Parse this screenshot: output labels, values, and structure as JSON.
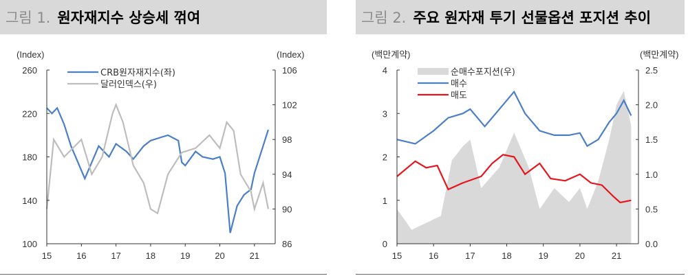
{
  "chart_data": [
    {
      "type": "line",
      "figure_label": "그림 1.",
      "title": "원자재지수 상승세 꺾여",
      "ylabel": "(Index)",
      "y2label": "(Index)",
      "ylim": [
        100,
        260
      ],
      "y2lim": [
        86,
        106
      ],
      "xlim": [
        2015,
        2021.6
      ],
      "yticks": [
        "100",
        "140",
        "180",
        "220",
        "260"
      ],
      "y2ticks": [
        "86",
        "90",
        "94",
        "98",
        "102",
        "106"
      ],
      "xticks": [
        "15",
        "16",
        "17",
        "18",
        "19",
        "20",
        "21"
      ],
      "legend_position": "top-left",
      "series": [
        {
          "name": "CRB원자재지수(좌)",
          "axis": "left",
          "color": "#4a7fc8",
          "x": [
            2015,
            2015.15,
            2015.3,
            2015.5,
            2015.7,
            2015.9,
            2016.1,
            2016.3,
            2016.5,
            2016.8,
            2017,
            2017.3,
            2017.5,
            2017.8,
            2018,
            2018.3,
            2018.5,
            2018.8,
            2018.9,
            2019,
            2019.3,
            2019.5,
            2019.8,
            2020,
            2020.15,
            2020.3,
            2020.5,
            2020.7,
            2020.9,
            2021,
            2021.2,
            2021.4
          ],
          "y": [
            225,
            220,
            225,
            210,
            190,
            175,
            160,
            175,
            190,
            180,
            192,
            185,
            178,
            190,
            195,
            198,
            200,
            195,
            175,
            172,
            185,
            180,
            178,
            180,
            165,
            110,
            135,
            145,
            150,
            165,
            185,
            205
          ]
        },
        {
          "name": "달러인덱스(우)",
          "axis": "right",
          "color": "#bdbdbd",
          "x": [
            2015,
            2015.2,
            2015.5,
            2016,
            2016.3,
            2016.6,
            2016.9,
            2017,
            2017.2,
            2017.5,
            2017.8,
            2018,
            2018.2,
            2018.5,
            2018.9,
            2019.3,
            2019.7,
            2020,
            2020.2,
            2020.4,
            2020.6,
            2020.9,
            2021,
            2021.25,
            2021.4
          ],
          "y": [
            90,
            98,
            96,
            98,
            94,
            96,
            101,
            102,
            100,
            95,
            93,
            90,
            89.5,
            94,
            96.5,
            97,
            98.5,
            97,
            100,
            99,
            94,
            92,
            90,
            93,
            90
          ]
        }
      ]
    },
    {
      "type": "line+area",
      "figure_label": "그림 2.",
      "title": "주요 원자재 투기 선물옵션 포지션 추이",
      "ylabel": "(백만계약)",
      "y2label": "(백만계약)",
      "ylim": [
        0,
        4
      ],
      "y2lim": [
        0,
        2.5
      ],
      "xlim": [
        2015,
        2021.6
      ],
      "yticks": [
        "0",
        "1",
        "2",
        "3",
        "4"
      ],
      "y2ticks": [
        "0.0",
        "0.5",
        "1.0",
        "1.5",
        "2.0",
        "2.5"
      ],
      "xticks": [
        "15",
        "16",
        "17",
        "18",
        "19",
        "20",
        "21"
      ],
      "legend_position": "top-left",
      "series": [
        {
          "name": "순매수포지션(우)",
          "axis": "right",
          "kind": "area",
          "color": "#d9d9d9",
          "x": [
            2015,
            2015.4,
            2015.8,
            2016.2,
            2016.5,
            2016.8,
            2017,
            2017.3,
            2017.8,
            2018.2,
            2018.6,
            2018.9,
            2019.3,
            2019.7,
            2020,
            2020.2,
            2020.5,
            2020.8,
            2021,
            2021.2,
            2021.4
          ],
          "y": [
            0.5,
            0.2,
            0.3,
            0.4,
            1.2,
            1.4,
            1.5,
            0.8,
            1.1,
            1.6,
            1.1,
            0.5,
            0.8,
            0.6,
            0.8,
            0.5,
            0.9,
            1.5,
            2.0,
            2.2,
            1.7
          ]
        },
        {
          "name": "매수",
          "axis": "left",
          "kind": "line",
          "color": "#4a7fc8",
          "x": [
            2015,
            2015.5,
            2016,
            2016.4,
            2016.8,
            2017,
            2017.4,
            2017.8,
            2018.2,
            2018.5,
            2018.9,
            2019.3,
            2019.7,
            2020,
            2020.2,
            2020.5,
            2020.8,
            2021,
            2021.2,
            2021.4
          ],
          "y": [
            2.4,
            2.3,
            2.6,
            2.9,
            3.0,
            3.1,
            2.7,
            3.1,
            3.5,
            3.0,
            2.6,
            2.5,
            2.5,
            2.55,
            2.25,
            2.4,
            2.8,
            3.0,
            3.3,
            2.95
          ]
        },
        {
          "name": "매도",
          "axis": "left",
          "kind": "line",
          "color": "#e8141c",
          "x": [
            2015,
            2015.5,
            2015.8,
            2016.1,
            2016.4,
            2016.8,
            2017.3,
            2017.6,
            2017.9,
            2018.2,
            2018.5,
            2018.9,
            2019.2,
            2019.6,
            2020,
            2020.3,
            2020.6,
            2020.9,
            2021.1,
            2021.4
          ],
          "y": [
            1.55,
            1.9,
            1.75,
            1.8,
            1.25,
            1.4,
            1.55,
            1.85,
            2.05,
            2.0,
            1.6,
            1.85,
            1.5,
            1.45,
            1.6,
            1.4,
            1.35,
            1.1,
            0.95,
            1.0
          ]
        }
      ]
    }
  ]
}
